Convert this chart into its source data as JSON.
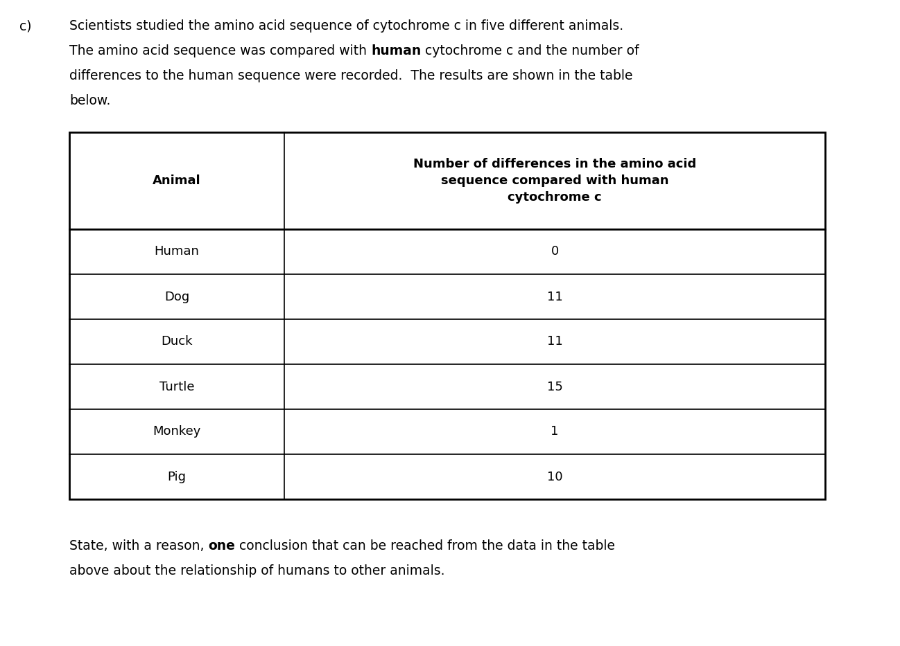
{
  "label_c": "c)",
  "paragraph1": "Scientists studied the amino acid sequence of cytochrome c in five different animals.",
  "paragraph2_pre": "The amino acid sequence was compared with ",
  "paragraph2_bold": "human",
  "paragraph2_post": " cytochrome c and the number of",
  "paragraph3": "differences to the human sequence were recorded.  The results are shown in the table",
  "paragraph4": "below.",
  "col1_header": "Animal",
  "col2_header_line1": "Number of differences in the amino acid",
  "col2_header_line2": "sequence compared with human",
  "col2_header_line3": "cytochrome c",
  "animals": [
    "Human",
    "Dog",
    "Duck",
    "Turtle",
    "Monkey",
    "Pig"
  ],
  "differences": [
    "0",
    "11",
    "11",
    "15",
    "1",
    "10"
  ],
  "footer_pre": "State, with a reason, ",
  "footer_bold": "one",
  "footer_post": " conclusion that can be reached from the data in the table",
  "footer2": "above about the relationship of humans to other animals.",
  "bg_color": "#ffffff",
  "text_color": "#000000",
  "font_size_body": 13.5,
  "font_size_table": 13.0,
  "font_family": "DejaVu Sans"
}
